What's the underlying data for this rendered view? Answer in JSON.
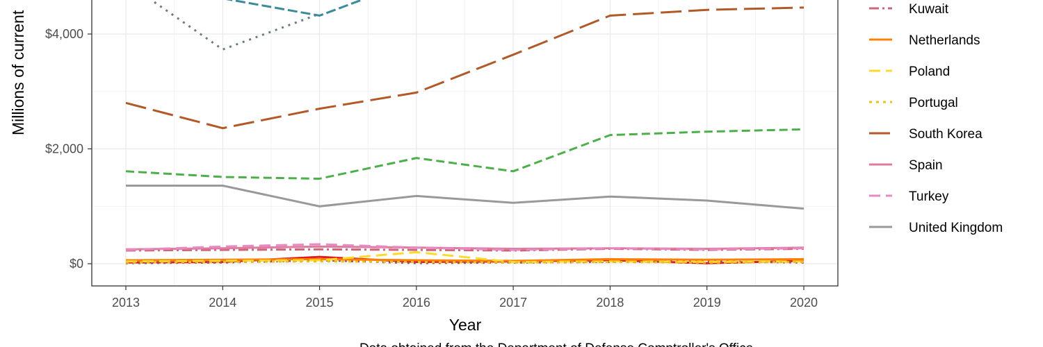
{
  "chart_data": {
    "type": "line",
    "xlabel": "Year",
    "ylabel": "Millions of current",
    "caption": "Data obtained from the Department of Defense Comptroller's Office",
    "x": [
      2013,
      2014,
      2015,
      2016,
      2017,
      2018,
      2019,
      2020
    ],
    "x_ticks": [
      "2013",
      "2014",
      "2015",
      "2016",
      "2017",
      "2018",
      "2019",
      "2020"
    ],
    "y_ticks": [
      {
        "value": 0,
        "label": "$0"
      },
      {
        "value": 2000,
        "label": "$2,000"
      },
      {
        "value": 4000,
        "label": "$4,000"
      }
    ],
    "ylim": [
      -380,
      4940
    ],
    "grid": true,
    "legend_position": "right",
    "series": [
      {
        "name": "Kuwait",
        "color": "#cc6677",
        "dash": "14,5,3,5",
        "values": [
          230,
          240,
          250,
          240,
          230,
          260,
          240,
          260
        ]
      },
      {
        "name": "Netherlands",
        "color": "#ff7f00",
        "dash": "none",
        "values": [
          60,
          70,
          80,
          60,
          50,
          80,
          70,
          80
        ]
      },
      {
        "name": "Poland",
        "color": "#ffd92f",
        "dash": "16,8",
        "values": [
          40,
          50,
          60,
          200,
          30,
          40,
          30,
          40
        ]
      },
      {
        "name": "Portugal",
        "color": "#e6c01f",
        "dash": "4,6",
        "values": [
          20,
          30,
          40,
          30,
          20,
          30,
          20,
          30
        ]
      },
      {
        "name": "South Korea",
        "color": "#b15928",
        "dash": "30,10",
        "values": [
          2800,
          2360,
          2700,
          2980,
          3640,
          4320,
          4420,
          4460
        ]
      },
      {
        "name": "Spain",
        "color": "#e07ba0",
        "dash": "none",
        "values": [
          250,
          270,
          300,
          280,
          260,
          270,
          260,
          280
        ]
      },
      {
        "name": "Turkey",
        "color": "#e78ac3",
        "dash": "16,8",
        "values": [
          240,
          300,
          340,
          280,
          240,
          270,
          250,
          270
        ]
      },
      {
        "name": "United Kingdom",
        "color": "#999999",
        "dash": "none",
        "values": [
          1360,
          1360,
          1000,
          1180,
          1060,
          1170,
          1100,
          960
        ]
      }
    ],
    "unlabeled_series": [
      {
        "color": "#4daf4a",
        "dash": "12,6",
        "values": [
          1610,
          1510,
          1480,
          1840,
          1610,
          2240,
          2300,
          2340
        ]
      },
      {
        "color": "#6b7b83",
        "dash": "3,7",
        "values": [
          4900,
          3730,
          4350,
          null,
          null,
          null,
          null,
          null
        ]
      },
      {
        "color": "#3a8a9a",
        "dash": "14,5",
        "values": [
          null,
          4620,
          4320,
          4950,
          null,
          null,
          null,
          null
        ]
      },
      {
        "color": "#e41a1c",
        "dash": "none",
        "values": [
          20,
          30,
          120,
          30,
          40,
          60,
          10,
          50
        ]
      },
      {
        "color": "#a05060",
        "dash": "3,6",
        "values": [
          10,
          20,
          60,
          10,
          20,
          30,
          40,
          20
        ]
      }
    ]
  }
}
